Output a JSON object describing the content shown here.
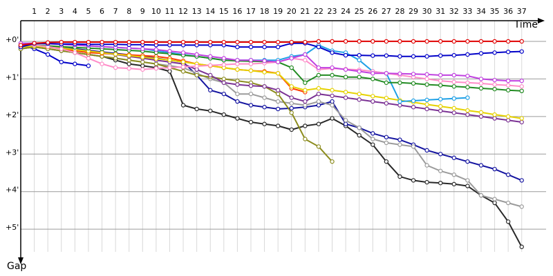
{
  "chart_data": {
    "type": "line",
    "x_label": "Time",
    "y_label": "Gap",
    "x": [
      0,
      1,
      2,
      3,
      4,
      5,
      6,
      7,
      8,
      9,
      10,
      11,
      12,
      13,
      14,
      15,
      16,
      17,
      18,
      19,
      20,
      21,
      22,
      23,
      24,
      25,
      26,
      27,
      28,
      29,
      30,
      31,
      32,
      33,
      34,
      35,
      36,
      37
    ],
    "xlim": [
      0,
      38.8
    ],
    "xticks": [
      1,
      2,
      3,
      4,
      5,
      6,
      7,
      8,
      9,
      10,
      11,
      12,
      13,
      14,
      15,
      16,
      17,
      18,
      19,
      20,
      21,
      22,
      23,
      24,
      25,
      26,
      27,
      28,
      29,
      30,
      31,
      32,
      33,
      34,
      35,
      36,
      37
    ],
    "ylim": [
      -0.55,
      5.75
    ],
    "yticks": [
      {
        "value": 0,
        "label": "+0'"
      },
      {
        "value": 1,
        "label": "+1'"
      },
      {
        "value": 2,
        "label": "+2'"
      },
      {
        "value": 3,
        "label": "+3'"
      },
      {
        "value": 4,
        "label": "+4'"
      },
      {
        "value": 5,
        "label": "+5'"
      }
    ],
    "y_inverted": true,
    "grid": true,
    "series": [
      {
        "color": "#e00000",
        "values": [
          0.1,
          0.05,
          0.03,
          0.02,
          0.02,
          0.02,
          0.02,
          0.02,
          0.02,
          0.02,
          0.02,
          0.02,
          0.02,
          0.02,
          0.02,
          0.02,
          0.02,
          0.02,
          0.02,
          0.02,
          0.02,
          0.02,
          0,
          0,
          0,
          0,
          0,
          0,
          0,
          0,
          0,
          0,
          0,
          0,
          0,
          0,
          0,
          0
        ]
      },
      {
        "color": "#0000c8",
        "values": [
          0.15,
          0.06,
          0.06,
          0.07,
          0.07,
          0.08,
          0.08,
          0.08,
          0.09,
          0.09,
          0.1,
          0.1,
          0.1,
          0.1,
          0.1,
          0.1,
          0.15,
          0.15,
          0.15,
          0.15,
          0.05,
          0.05,
          0.15,
          0.3,
          0.37,
          0.37,
          0.38,
          0.38,
          0.4,
          0.4,
          0.4,
          0.38,
          0.37,
          0.35,
          0.32,
          0.3,
          0.28,
          0.27
        ]
      },
      {
        "color": "#c040e0",
        "values": [
          0.05,
          0.05,
          0.06,
          0.08,
          0.1,
          0.12,
          0.14,
          0.16,
          0.18,
          0.2,
          0.22,
          0.26,
          0.3,
          0.35,
          0.4,
          0.45,
          0.5,
          0.5,
          0.52,
          0.55,
          0.45,
          0.35,
          0.7,
          0.7,
          0.75,
          0.8,
          0.85,
          0.85,
          0.86,
          0.87,
          0.88,
          0.9,
          0.9,
          0.92,
          1.0,
          1.03,
          1.05,
          1.05
        ]
      },
      {
        "color": "#ff8cc8",
        "values": [
          0.1,
          0.1,
          0.14,
          0.2,
          0.3,
          0.45,
          0.6,
          0.7,
          0.72,
          0.75,
          0.72,
          0.7,
          0.68,
          0.66,
          0.64,
          0.62,
          0.6,
          0.6,
          0.58,
          0.55,
          0.45,
          0.5,
          0.75,
          0.72,
          0.74,
          0.76,
          0.8,
          0.85,
          0.9,
          0.95,
          1.0,
          1.05,
          1.08,
          1.1,
          1.12,
          1.15,
          1.17,
          1.2
        ]
      },
      {
        "color": "#228b22",
        "values": [
          0.1,
          0.1,
          0.12,
          0.14,
          0.16,
          0.18,
          0.2,
          0.22,
          0.24,
          0.26,
          0.3,
          0.33,
          0.37,
          0.4,
          0.45,
          0.5,
          0.52,
          0.53,
          0.54,
          0.55,
          0.7,
          1.1,
          0.9,
          0.9,
          0.95,
          0.95,
          1.0,
          1.1,
          1.1,
          1.12,
          1.15,
          1.17,
          1.2,
          1.22,
          1.25,
          1.27,
          1.3,
          1.32
        ]
      },
      {
        "color": "#1ea0e6",
        "values": [
          0.05,
          0.05,
          0.06,
          0.08,
          0.1,
          0.12,
          0.14,
          0.16,
          0.18,
          0.2,
          0.25,
          0.3,
          0.35,
          0.4,
          0.45,
          0.5,
          0.5,
          0.5,
          0.5,
          0.5,
          0.4,
          0.35,
          0.1,
          0.25,
          0.3,
          0.5,
          0.8,
          0.85,
          1.6,
          1.58,
          1.56,
          1.54,
          1.52,
          1.5,
          null,
          null,
          null,
          null
        ]
      },
      {
        "color": "#e6d200",
        "values": [
          0.15,
          0.12,
          0.15,
          0.18,
          0.22,
          0.26,
          0.3,
          0.34,
          0.38,
          0.42,
          0.46,
          0.5,
          0.55,
          0.6,
          0.65,
          0.7,
          0.75,
          0.78,
          0.82,
          0.85,
          1.2,
          1.3,
          1.25,
          1.3,
          1.35,
          1.4,
          1.46,
          1.51,
          1.57,
          1.62,
          1.68,
          1.73,
          1.78,
          1.84,
          1.89,
          1.95,
          2.0,
          2.05
        ]
      },
      {
        "color": "#7b3294",
        "values": [
          0.12,
          0.1,
          0.14,
          0.18,
          0.22,
          0.26,
          0.3,
          0.35,
          0.4,
          0.45,
          0.5,
          0.55,
          0.6,
          0.75,
          0.9,
          1.1,
          1.15,
          1.18,
          1.2,
          1.3,
          1.5,
          1.6,
          1.4,
          1.45,
          1.5,
          1.55,
          1.6,
          1.65,
          1.7,
          1.75,
          1.8,
          1.85,
          1.9,
          1.95,
          2.0,
          2.05,
          2.1,
          2.15
        ]
      },
      {
        "color": "#ff3c00",
        "values": [
          0.15,
          0.1,
          0.15,
          0.2,
          0.25,
          0.3,
          0.32,
          0.34,
          0.36,
          0.38,
          0.4,
          0.45,
          0.52,
          0.6,
          0.65,
          0.7,
          0.75,
          0.78,
          0.8,
          0.85,
          1.25,
          1.35,
          null,
          null,
          null,
          null,
          null,
          null,
          null,
          null,
          null,
          null,
          null,
          null,
          null,
          null,
          null,
          null
        ]
      },
      {
        "color": "#8c8c1e",
        "values": [
          0.2,
          0.15,
          0.2,
          0.25,
          0.3,
          0.35,
          0.4,
          0.45,
          0.5,
          0.55,
          0.6,
          0.7,
          0.8,
          0.9,
          0.95,
          1.0,
          1.05,
          1.1,
          1.2,
          1.4,
          1.9,
          2.6,
          2.8,
          3.2,
          null,
          null,
          null,
          null,
          null,
          null,
          null,
          null,
          null,
          null,
          null,
          null,
          null,
          null
        ]
      },
      {
        "color": "#9b9b9b",
        "values": [
          0.2,
          0.15,
          0.2,
          0.25,
          0.3,
          0.35,
          0.4,
          0.45,
          0.5,
          0.55,
          0.6,
          0.65,
          0.7,
          0.85,
          1.0,
          1.1,
          1.4,
          1.4,
          1.5,
          1.6,
          1.65,
          1.7,
          1.6,
          1.7,
          2.1,
          2.3,
          2.6,
          2.7,
          2.75,
          2.8,
          3.3,
          3.45,
          3.55,
          3.7,
          4.1,
          4.2,
          4.3,
          4.4
        ]
      },
      {
        "color": "#1414a0",
        "values": [
          0.15,
          0.1,
          0.15,
          0.18,
          0.2,
          0.24,
          0.28,
          0.32,
          0.36,
          0.4,
          0.45,
          0.5,
          0.55,
          0.9,
          1.3,
          1.4,
          1.6,
          1.7,
          1.75,
          1.8,
          1.78,
          1.75,
          1.7,
          1.6,
          2.2,
          2.3,
          2.45,
          2.55,
          2.62,
          2.75,
          2.9,
          3.0,
          3.1,
          3.2,
          3.3,
          3.4,
          3.55,
          3.7
        ]
      },
      {
        "color": "#282828",
        "values": [
          0.2,
          0.15,
          0.2,
          0.25,
          0.3,
          0.35,
          0.4,
          0.5,
          0.6,
          0.65,
          0.7,
          0.8,
          1.7,
          1.8,
          1.85,
          1.95,
          2.05,
          2.15,
          2.2,
          2.25,
          2.35,
          2.25,
          2.2,
          2.05,
          2.25,
          2.5,
          2.75,
          3.2,
          3.6,
          3.7,
          3.75,
          3.77,
          3.8,
          3.85,
          4.1,
          4.3,
          4.8,
          5.47
        ]
      },
      {
        "color": "#0000c8",
        "values": [
          0.1,
          0.2,
          0.35,
          0.55,
          0.6,
          0.65,
          null,
          null,
          null,
          null,
          null,
          null,
          null,
          null,
          null,
          null,
          null,
          null,
          null,
          null,
          null,
          null,
          null,
          null,
          null,
          null,
          null,
          null,
          null,
          null,
          null,
          null,
          null,
          null,
          null,
          null,
          null,
          null
        ]
      }
    ]
  }
}
